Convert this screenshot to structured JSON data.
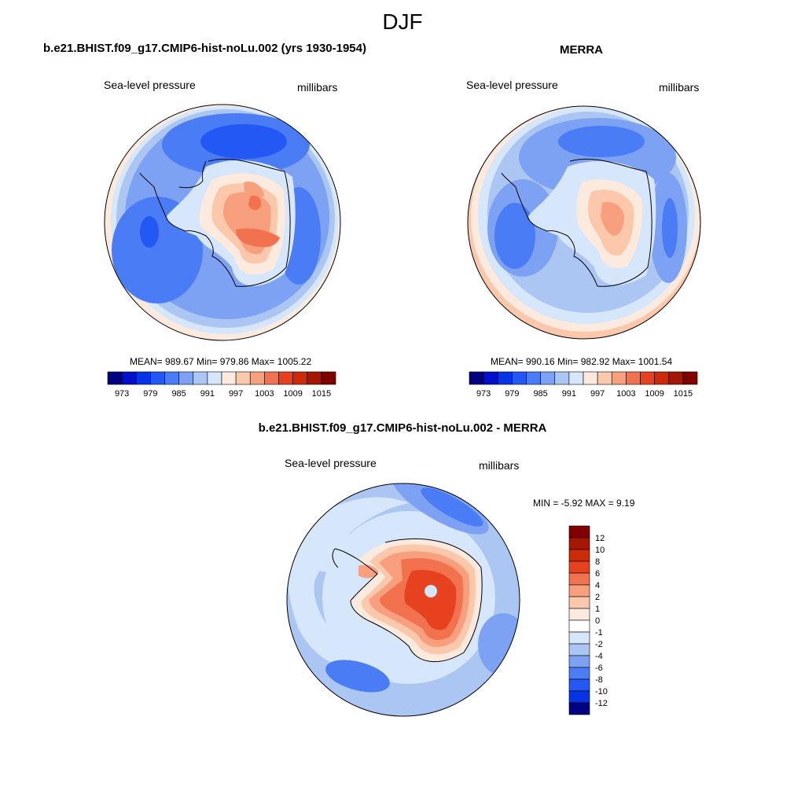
{
  "figure_title": "DJF",
  "colorbar_horizontal": {
    "ticks": [
      "973",
      "979",
      "985",
      "991",
      "997",
      "1003",
      "1009",
      "1015"
    ],
    "colors": [
      "#000080",
      "#0010c8",
      "#0733e6",
      "#2458f4",
      "#4a7cf5",
      "#7ea2f3",
      "#acc6f4",
      "#d6e6fb",
      "#fdeadf",
      "#fbc8ac",
      "#f8a07e",
      "#f2724f",
      "#e74220",
      "#cd2a08",
      "#a51703",
      "#800000"
    ]
  },
  "panels": [
    {
      "title": "b.e21.BHIST.f09_g17.CMIP6-hist-noLu.002 (yrs 1930-1954)",
      "variable": "Sea-level pressure",
      "units": "millibars",
      "stats": "MEAN= 989.67  Min= 979.86  Max= 1005.22"
    },
    {
      "title": "MERRA",
      "variable": "Sea-level pressure",
      "units": "millibars",
      "stats": "MEAN= 990.16  Min= 982.92  Max= 1001.54"
    }
  ],
  "difference": {
    "title": "b.e21.BHIST.f09_g17.CMIP6-hist-noLu.002 - MERRA",
    "variable": "Sea-level pressure",
    "units": "millibars",
    "stats": "MIN =  -5.92 MAX =   9.19",
    "colorbar_labels": [
      "12",
      "10",
      "8",
      "6",
      "4",
      "2",
      "1",
      "0",
      "-1",
      "-2",
      "-4",
      "-6",
      "-8",
      "-10",
      "-12"
    ],
    "colorbar_colors": [
      "#800000",
      "#a51703",
      "#cd2a08",
      "#e74220",
      "#f2724f",
      "#f8a07e",
      "#fbc8ac",
      "#fdeadf",
      "#ffffff",
      "#d6e6fb",
      "#acc6f4",
      "#7ea2f3",
      "#4a7cf5",
      "#2458f4",
      "#0733e6",
      "#000080"
    ]
  }
}
